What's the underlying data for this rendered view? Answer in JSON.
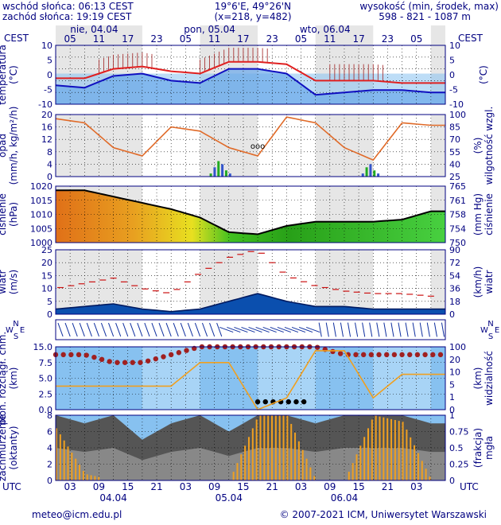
{
  "header": {
    "sunrise": "wschód słońca: 06:13 CEST",
    "sunset": "zachód słońca: 19:19 CEST",
    "coords": "19°6'E, 49°26'N",
    "grid": "(x=218, y=482)",
    "altitude_label": "wysokość (min, środek, max)",
    "altitude_values": "598 - 821 - 1087 m"
  },
  "time_axis": {
    "cest_label": "CEST",
    "utc_label": "UTC",
    "top_hours": [
      "05",
      "11",
      "17",
      "23",
      "05",
      "11",
      "17",
      "23",
      "05",
      "11",
      "17",
      "23",
      "05"
    ],
    "bottom_hours": [
      "03",
      "09",
      "15",
      "21",
      "03",
      "09",
      "15",
      "21",
      "03",
      "09",
      "15",
      "21",
      "03"
    ],
    "top_dates": [
      "nie, 04.04",
      "pon, 05.04",
      "wto, 06.04"
    ],
    "bottom_dates": [
      "04.04",
      "05.04",
      "06.04"
    ]
  },
  "footer": {
    "email": "meteo@icm.edu.pl",
    "copyright": "© 2007-2021 ICM, Uniwersytet Warszawski"
  },
  "colors": {
    "temperature_max": "#e02020",
    "temperature_mean": "#1010c0",
    "precip_green": "#22aa22",
    "precip_blue": "#3355cc",
    "humidity": "#e06a28",
    "wind_fill": "#0b4fae",
    "wind_gust": "#cc1111",
    "cloud_base": "#a02020",
    "visibility": "#f0a020",
    "fog": "#f0a020",
    "sky_blue": "#87c1f0"
  },
  "chart_data": [
    {
      "type": "line",
      "panel": "temperature",
      "ylabel": "temperatura (°C)",
      "ylabel_right": "(°C)",
      "y_ticks": [
        "10",
        "5",
        "0",
        "-5",
        "-10"
      ],
      "ylim": [
        -13,
        12
      ],
      "x_hours_utc": [
        0,
        6,
        12,
        18,
        24,
        30,
        36,
        42,
        48,
        54,
        60,
        66,
        72,
        78
      ],
      "series": [
        {
          "values": [
            -2,
            -2,
            2,
            3,
            1,
            0,
            5,
            5,
            4,
            -3,
            -3,
            -3,
            -4,
            -4
          ]
        },
        {
          "values": [
            -5,
            -6,
            -1,
            0,
            -3,
            -4,
            2,
            2,
            0,
            -9,
            -8,
            -7,
            -7,
            -8
          ]
        }
      ]
    },
    {
      "type": "bar",
      "panel": "precipitation_humidity",
      "ylabel": "opad (mm/h, kg/m²/h)",
      "ylabel_right": "wilgotność wzgl. (%)",
      "y_ticks": [
        "20",
        "16",
        "12",
        "8",
        "4",
        "0"
      ],
      "y2_ticks": [
        "100",
        "85",
        "70",
        "55",
        "40",
        "25"
      ],
      "ylim": [
        0,
        20
      ],
      "y2lim": [
        25,
        100
      ],
      "annotation": "ooo",
      "precip_values": [
        0,
        0,
        0,
        0,
        0,
        0,
        0,
        0,
        0,
        0,
        1,
        3,
        5,
        4,
        2,
        1,
        0,
        0,
        0,
        0,
        0,
        0,
        0,
        0,
        0,
        0,
        0,
        1,
        3,
        4,
        2,
        1,
        0,
        0
      ],
      "humidity": {
        "x_hours_utc": [
          0,
          6,
          12,
          18,
          24,
          30,
          36,
          42,
          48,
          54,
          60,
          66,
          72,
          78
        ],
        "values": [
          95,
          90,
          60,
          50,
          85,
          80,
          60,
          50,
          97,
          90,
          60,
          45,
          90,
          87
        ]
      }
    },
    {
      "type": "area",
      "panel": "pressure",
      "ylabel": "ciśnienie (hPa)",
      "ylabel_right": "(mm Hg) ciśnienie",
      "y_ticks": [
        "1020",
        "1015",
        "1010",
        "1005",
        "1000"
      ],
      "y2_ticks": [
        "765",
        "761",
        "758",
        "754",
        "750"
      ],
      "ylim": [
        997,
        1024
      ],
      "x_hours_utc": [
        0,
        6,
        12,
        18,
        24,
        30,
        36,
        42,
        48,
        54,
        60,
        66,
        72,
        78
      ],
      "values": [
        1022,
        1022,
        1019,
        1016,
        1013,
        1009,
        1002,
        1001,
        1005,
        1007,
        1007,
        1007,
        1008,
        1012
      ]
    },
    {
      "type": "area",
      "panel": "wind",
      "ylabel": "wiatr (m/s)",
      "ylabel_right": "(km/h) wiatr",
      "y_ticks": [
        "25",
        "20",
        "15",
        "10",
        "5",
        "0"
      ],
      "y2_ticks": [
        "90",
        "72",
        "54",
        "36",
        "18",
        "0"
      ],
      "ylim": [
        0,
        25
      ],
      "x_hours_utc": [
        0,
        6,
        12,
        18,
        24,
        30,
        36,
        42,
        48,
        54,
        60,
        66,
        72,
        78
      ],
      "speed": [
        2,
        3,
        4,
        2,
        1,
        2,
        5,
        8,
        5,
        3,
        3,
        2,
        2,
        2
      ],
      "gust": [
        10,
        12,
        14,
        10,
        8,
        16,
        22,
        25,
        15,
        11,
        9,
        8,
        8,
        7
      ],
      "wind_rose_letters": [
        "N",
        "W",
        "E",
        "S"
      ]
    },
    {
      "type": "scatter",
      "panel": "cloud_visibility",
      "ylabel": "pion. rozciągł. chm. (km)",
      "ylabel_right": "(km) widzialność",
      "y_ticks": [
        "15.0",
        "7.5",
        "5.0",
        "2.5",
        "0.0"
      ],
      "y2_ticks": [
        "100",
        "20",
        "10",
        "5",
        "1",
        "0"
      ],
      "x_hours_utc": [
        0,
        6,
        12,
        18,
        24,
        30,
        36,
        42,
        48,
        54,
        60,
        66,
        72,
        78
      ],
      "cloud_base": [
        7,
        7,
        6,
        6,
        7,
        8,
        8,
        8,
        8,
        8,
        7,
        7,
        7,
        7
      ],
      "visibility": [
        2,
        2,
        2,
        2,
        2,
        4,
        4,
        0,
        1,
        5,
        5,
        1,
        3,
        3
      ]
    },
    {
      "type": "area",
      "panel": "cloud_cover_fog",
      "ylabel": "zachmurzenie (oktanty)",
      "ylabel_right": "(frakcja) mgła",
      "y_ticks": [
        "8",
        "6",
        "4",
        "2",
        "0"
      ],
      "y2_ticks": [
        "1",
        "0.75",
        "0.5",
        "0.25",
        "0"
      ],
      "ylim": [
        0,
        8
      ],
      "x_hours_utc": [
        0,
        6,
        12,
        18,
        24,
        30,
        36,
        42,
        48,
        54,
        60,
        66,
        72,
        78
      ],
      "cover": [
        8,
        7,
        8,
        5,
        7,
        8,
        6,
        8,
        8,
        7,
        8,
        8,
        8,
        7
      ],
      "fog": [
        0.8,
        0.1,
        0,
        0,
        0,
        0,
        0,
        1,
        1,
        0,
        0,
        1,
        0.9,
        0
      ]
    }
  ]
}
